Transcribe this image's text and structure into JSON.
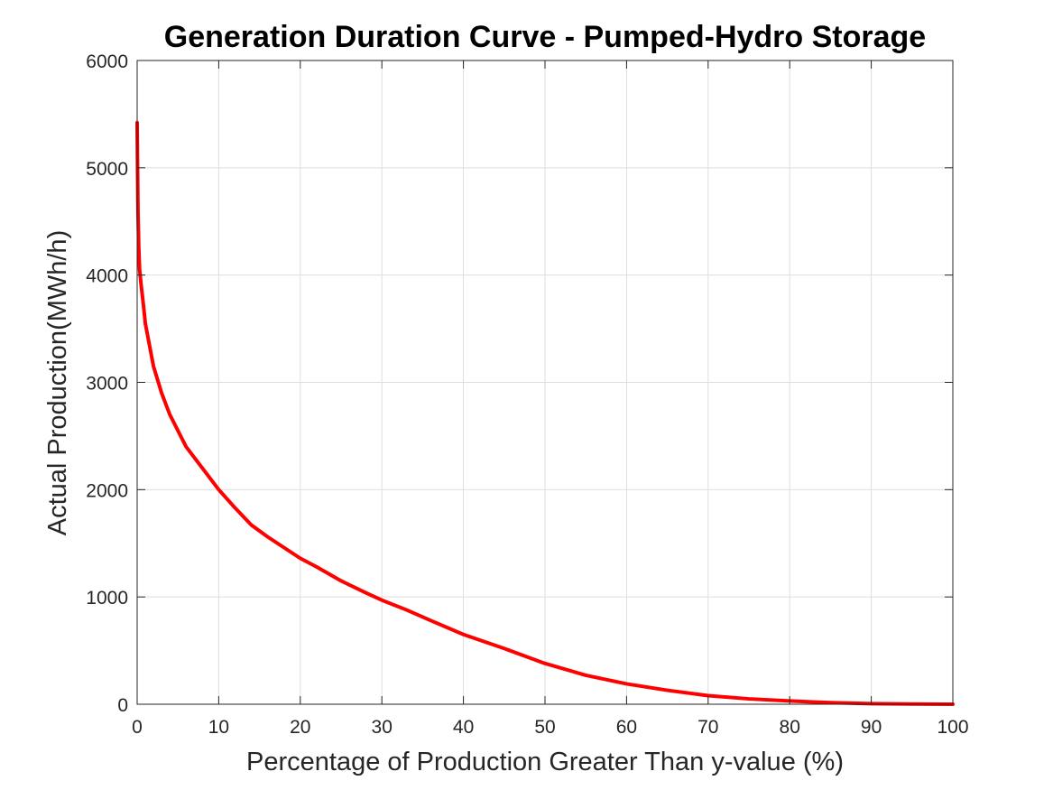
{
  "chart_data": {
    "type": "line",
    "title": "Generation Duration Curve - Pumped-Hydro Storage",
    "xlabel": "Percentage of Production Greater Than y-value (%)",
    "ylabel": "Actual Production(MWh/h)",
    "xlim": [
      0,
      100
    ],
    "ylim": [
      0,
      6000
    ],
    "xticks": [
      0,
      10,
      20,
      30,
      40,
      50,
      60,
      70,
      80,
      90,
      100
    ],
    "yticks": [
      0,
      1000,
      2000,
      3000,
      4000,
      5000,
      6000
    ],
    "grid": true,
    "series": [
      {
        "color": "#ff0000",
        "x": [
          0,
          0.05,
          0.1,
          0.2,
          0.3,
          0.5,
          0.8,
          1,
          1.5,
          2,
          3,
          4,
          5,
          6,
          7,
          8,
          10,
          12,
          14,
          16,
          18,
          20,
          22,
          25,
          28,
          30,
          33,
          36,
          40,
          45,
          50,
          55,
          60,
          65,
          70,
          75,
          80,
          85,
          90,
          95,
          100
        ],
        "y": [
          5420,
          5000,
          4600,
          4250,
          4050,
          3900,
          3700,
          3550,
          3350,
          3150,
          2900,
          2700,
          2550,
          2400,
          2300,
          2200,
          2000,
          1830,
          1670,
          1560,
          1460,
          1360,
          1280,
          1150,
          1040,
          970,
          880,
          780,
          650,
          520,
          380,
          270,
          190,
          130,
          80,
          50,
          30,
          15,
          5,
          2,
          0
        ]
      }
    ]
  }
}
